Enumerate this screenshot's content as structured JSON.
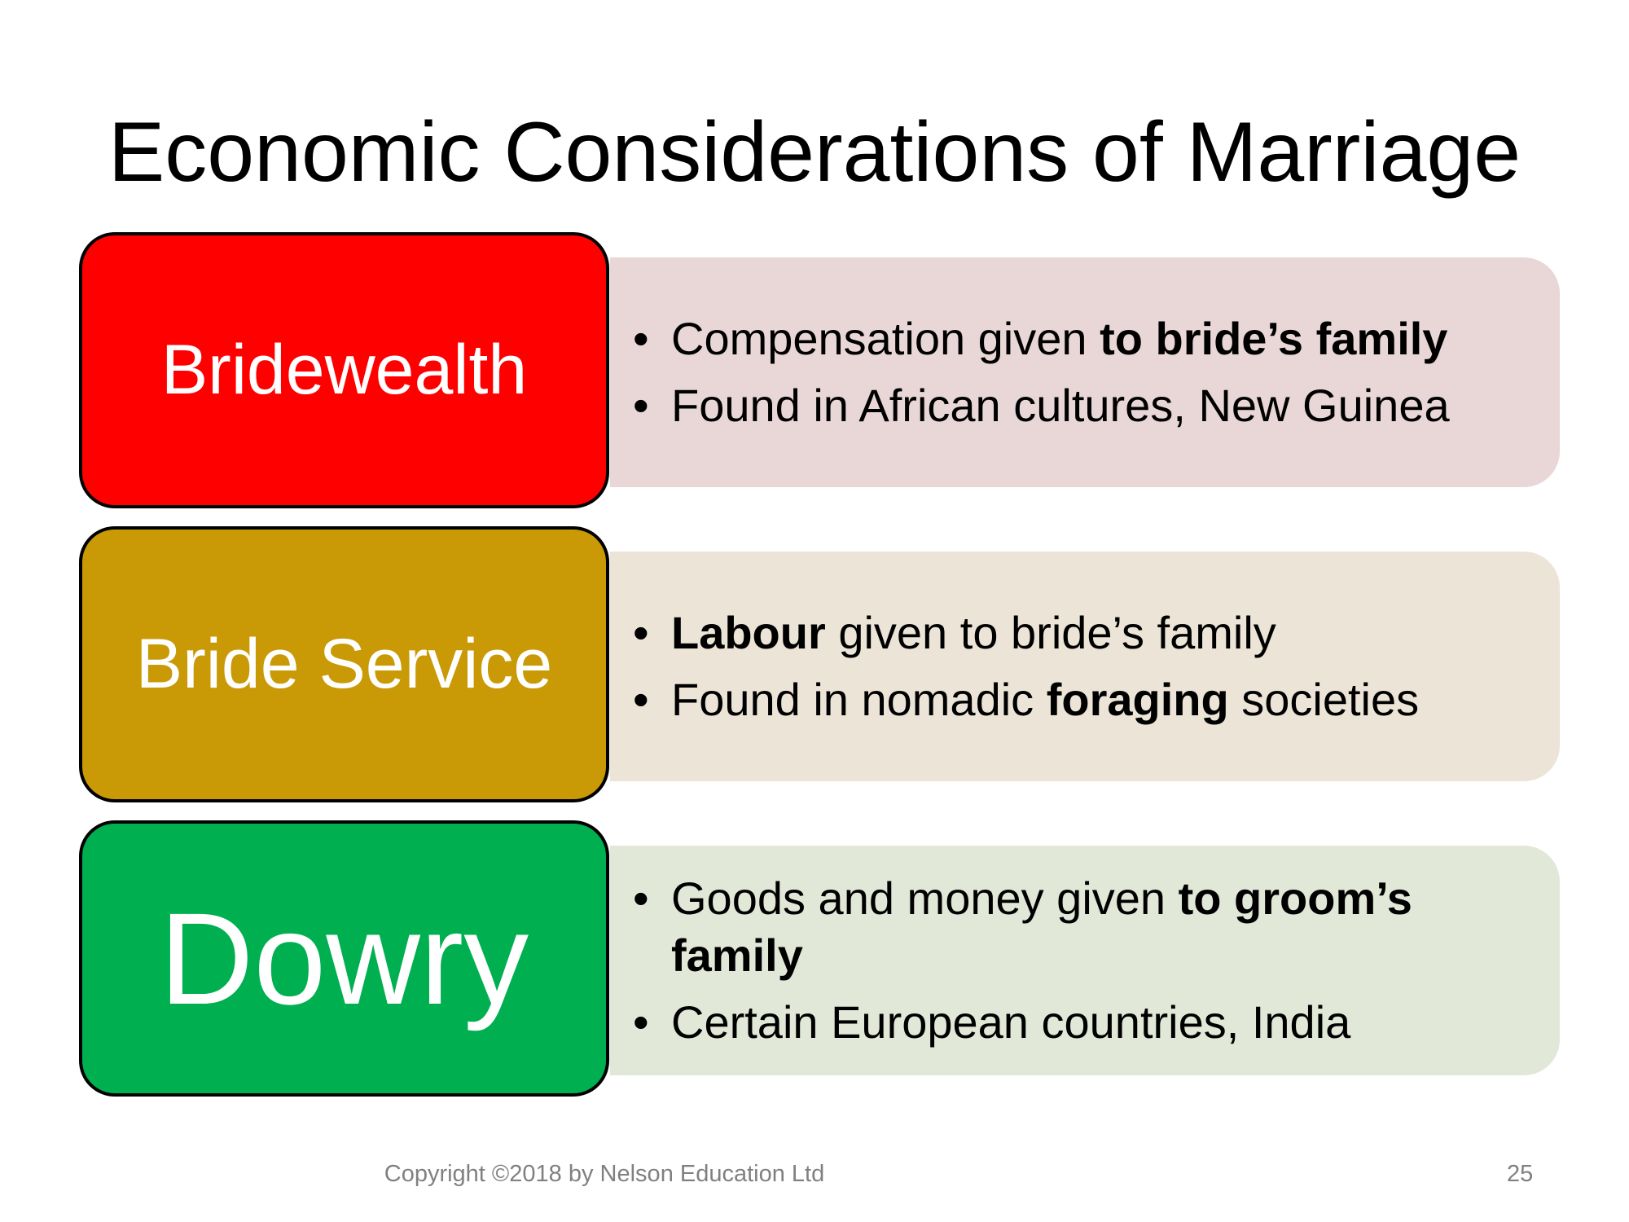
{
  "slide": {
    "title": "Economic Considerations of Marriage",
    "rows": [
      {
        "term": "Bridewealth",
        "term_color": "#FF0000",
        "panel_color": "#E9D7D7",
        "bullets": [
          {
            "normal": "Compensation given ",
            "bold": "to bride’s family",
            "after": ""
          },
          {
            "normal": "Found in African cultures, New Guinea",
            "bold": "",
            "after": ""
          }
        ]
      },
      {
        "term": "Bride Service",
        "term_color": "#C99A06",
        "panel_color": "#EBE4D7",
        "bullets": [
          {
            "normal": "",
            "bold": "Labour",
            "after": " given to bride’s family"
          },
          {
            "normal": "Found in nomadic ",
            "bold": "foraging",
            "after": " societies"
          }
        ]
      },
      {
        "term": "Dowry",
        "term_color": "#00B050",
        "panel_color": "#E2E8D8",
        "bullets": [
          {
            "normal": "Goods and money given ",
            "bold": "to groom’s family",
            "after": ""
          },
          {
            "normal": "Certain European countries, India",
            "bold": "",
            "after": ""
          }
        ]
      }
    ],
    "bullet_glyph": "•"
  },
  "footer": {
    "copyright": "Copyright ©2018 by Nelson Education Ltd",
    "page_number": "25"
  }
}
